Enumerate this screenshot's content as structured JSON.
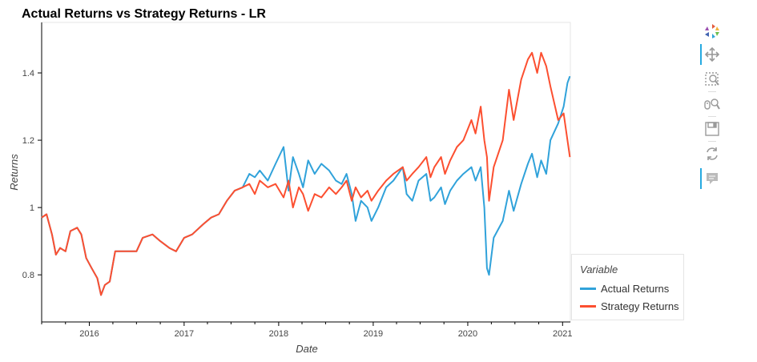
{
  "chart_data": {
    "type": "line",
    "title": "Actual Returns vs Strategy Returns - LR",
    "xlabel": "Date",
    "ylabel": "Returns",
    "xlim": [
      "2015-07-01",
      "2021-01-31"
    ],
    "ylim": [
      0.66,
      1.55
    ],
    "x_ticks": [
      "2016",
      "2017",
      "2018",
      "2019",
      "2020",
      "2021"
    ],
    "y_ticks": [
      0.8,
      1,
      1.2,
      1.4
    ],
    "y_tick_labels": [
      "0.8",
      "1",
      "1.2",
      "1.4"
    ],
    "grid": false,
    "legend": {
      "title": "Variable",
      "position": "bottom-right"
    },
    "series": [
      {
        "name": "Actual Returns",
        "color": "#30a2da",
        "points": [
          [
            "2015-07-01",
            0.97
          ],
          [
            "2015-07-20",
            0.98
          ],
          [
            "2015-08-10",
            0.92
          ],
          [
            "2015-08-25",
            0.86
          ],
          [
            "2015-09-10",
            0.88
          ],
          [
            "2015-10-01",
            0.87
          ],
          [
            "2015-10-20",
            0.93
          ],
          [
            "2015-11-15",
            0.94
          ],
          [
            "2015-12-01",
            0.92
          ],
          [
            "2015-12-20",
            0.85
          ],
          [
            "2016-01-10",
            0.82
          ],
          [
            "2016-02-01",
            0.79
          ],
          [
            "2016-02-15",
            0.74
          ],
          [
            "2016-03-01",
            0.77
          ],
          [
            "2016-03-20",
            0.78
          ],
          [
            "2016-04-10",
            0.87
          ],
          [
            "2016-07-01",
            0.87
          ],
          [
            "2016-07-25",
            0.91
          ],
          [
            "2016-09-01",
            0.92
          ],
          [
            "2016-10-01",
            0.9
          ],
          [
            "2016-11-05",
            0.88
          ],
          [
            "2016-12-01",
            0.87
          ],
          [
            "2017-01-01",
            0.91
          ],
          [
            "2017-02-01",
            0.92
          ],
          [
            "2017-03-15",
            0.95
          ],
          [
            "2017-04-15",
            0.97
          ],
          [
            "2017-05-15",
            0.98
          ],
          [
            "2017-06-15",
            1.02
          ],
          [
            "2017-07-15",
            1.05
          ],
          [
            "2017-08-15",
            1.06
          ],
          [
            "2017-09-10",
            1.1
          ],
          [
            "2017-10-01",
            1.09
          ],
          [
            "2017-10-20",
            1.11
          ],
          [
            "2017-11-20",
            1.08
          ],
          [
            "2017-12-20",
            1.13
          ],
          [
            "2018-01-20",
            1.18
          ],
          [
            "2018-02-08",
            1.05
          ],
          [
            "2018-02-25",
            1.15
          ],
          [
            "2018-03-20",
            1.1
          ],
          [
            "2018-04-05",
            1.06
          ],
          [
            "2018-04-25",
            1.14
          ],
          [
            "2018-05-20",
            1.1
          ],
          [
            "2018-06-15",
            1.13
          ],
          [
            "2018-07-15",
            1.11
          ],
          [
            "2018-08-10",
            1.08
          ],
          [
            "2018-09-01",
            1.07
          ],
          [
            "2018-09-20",
            1.1
          ],
          [
            "2018-10-10",
            1.04
          ],
          [
            "2018-10-25",
            0.96
          ],
          [
            "2018-11-15",
            1.02
          ],
          [
            "2018-12-10",
            1.0
          ],
          [
            "2018-12-25",
            0.96
          ],
          [
            "2019-01-20",
            1.0
          ],
          [
            "2019-02-20",
            1.06
          ],
          [
            "2019-03-20",
            1.08
          ],
          [
            "2019-04-25",
            1.12
          ],
          [
            "2019-05-10",
            1.04
          ],
          [
            "2019-06-01",
            1.02
          ],
          [
            "2019-06-25",
            1.08
          ],
          [
            "2019-07-25",
            1.1
          ],
          [
            "2019-08-10",
            1.02
          ],
          [
            "2019-08-25",
            1.03
          ],
          [
            "2019-09-20",
            1.06
          ],
          [
            "2019-10-05",
            1.01
          ],
          [
            "2019-10-25",
            1.05
          ],
          [
            "2019-11-20",
            1.08
          ],
          [
            "2019-12-15",
            1.1
          ],
          [
            "2020-01-15",
            1.12
          ],
          [
            "2020-01-31",
            1.08
          ],
          [
            "2020-02-20",
            1.12
          ],
          [
            "2020-03-05",
            1.0
          ],
          [
            "2020-03-15",
            0.82
          ],
          [
            "2020-03-23",
            0.8
          ],
          [
            "2020-04-10",
            0.91
          ],
          [
            "2020-05-15",
            0.96
          ],
          [
            "2020-06-08",
            1.05
          ],
          [
            "2020-06-26",
            0.99
          ],
          [
            "2020-07-25",
            1.07
          ],
          [
            "2020-08-20",
            1.13
          ],
          [
            "2020-09-05",
            1.16
          ],
          [
            "2020-09-25",
            1.09
          ],
          [
            "2020-10-10",
            1.14
          ],
          [
            "2020-10-30",
            1.1
          ],
          [
            "2020-11-15",
            1.2
          ],
          [
            "2020-12-15",
            1.25
          ],
          [
            "2021-01-05",
            1.3
          ],
          [
            "2021-01-20",
            1.37
          ],
          [
            "2021-01-29",
            1.39
          ]
        ]
      },
      {
        "name": "Strategy Returns",
        "color": "#fc4f30",
        "points": [
          [
            "2015-07-01",
            0.97
          ],
          [
            "2015-07-20",
            0.98
          ],
          [
            "2015-08-10",
            0.92
          ],
          [
            "2015-08-25",
            0.86
          ],
          [
            "2015-09-10",
            0.88
          ],
          [
            "2015-10-01",
            0.87
          ],
          [
            "2015-10-20",
            0.93
          ],
          [
            "2015-11-15",
            0.94
          ],
          [
            "2015-12-01",
            0.92
          ],
          [
            "2015-12-20",
            0.85
          ],
          [
            "2016-01-10",
            0.82
          ],
          [
            "2016-02-01",
            0.79
          ],
          [
            "2016-02-15",
            0.74
          ],
          [
            "2016-03-01",
            0.77
          ],
          [
            "2016-03-20",
            0.78
          ],
          [
            "2016-04-10",
            0.87
          ],
          [
            "2016-07-01",
            0.87
          ],
          [
            "2016-07-25",
            0.91
          ],
          [
            "2016-09-01",
            0.92
          ],
          [
            "2016-10-01",
            0.9
          ],
          [
            "2016-11-05",
            0.88
          ],
          [
            "2016-12-01",
            0.87
          ],
          [
            "2017-01-01",
            0.91
          ],
          [
            "2017-02-01",
            0.92
          ],
          [
            "2017-03-15",
            0.95
          ],
          [
            "2017-04-15",
            0.97
          ],
          [
            "2017-05-15",
            0.98
          ],
          [
            "2017-06-15",
            1.02
          ],
          [
            "2017-07-15",
            1.05
          ],
          [
            "2017-08-15",
            1.06
          ],
          [
            "2017-09-10",
            1.07
          ],
          [
            "2017-10-01",
            1.04
          ],
          [
            "2017-10-20",
            1.08
          ],
          [
            "2017-11-20",
            1.06
          ],
          [
            "2017-12-20",
            1.07
          ],
          [
            "2018-01-20",
            1.03
          ],
          [
            "2018-02-08",
            1.08
          ],
          [
            "2018-02-25",
            1.0
          ],
          [
            "2018-03-20",
            1.06
          ],
          [
            "2018-04-05",
            1.04
          ],
          [
            "2018-04-25",
            0.99
          ],
          [
            "2018-05-20",
            1.04
          ],
          [
            "2018-06-15",
            1.03
          ],
          [
            "2018-07-15",
            1.06
          ],
          [
            "2018-08-10",
            1.04
          ],
          [
            "2018-09-01",
            1.06
          ],
          [
            "2018-09-20",
            1.08
          ],
          [
            "2018-10-10",
            1.02
          ],
          [
            "2018-10-25",
            1.06
          ],
          [
            "2018-11-15",
            1.03
          ],
          [
            "2018-12-10",
            1.05
          ],
          [
            "2018-12-25",
            1.02
          ],
          [
            "2019-01-20",
            1.05
          ],
          [
            "2019-02-20",
            1.08
          ],
          [
            "2019-03-20",
            1.1
          ],
          [
            "2019-04-25",
            1.12
          ],
          [
            "2019-05-10",
            1.08
          ],
          [
            "2019-06-01",
            1.1
          ],
          [
            "2019-06-25",
            1.12
          ],
          [
            "2019-07-25",
            1.15
          ],
          [
            "2019-08-10",
            1.09
          ],
          [
            "2019-08-25",
            1.12
          ],
          [
            "2019-09-20",
            1.15
          ],
          [
            "2019-10-05",
            1.1
          ],
          [
            "2019-10-25",
            1.14
          ],
          [
            "2019-11-20",
            1.18
          ],
          [
            "2019-12-15",
            1.2
          ],
          [
            "2020-01-15",
            1.26
          ],
          [
            "2020-01-31",
            1.22
          ],
          [
            "2020-02-20",
            1.3
          ],
          [
            "2020-03-05",
            1.2
          ],
          [
            "2020-03-15",
            1.15
          ],
          [
            "2020-03-23",
            1.02
          ],
          [
            "2020-04-10",
            1.12
          ],
          [
            "2020-05-15",
            1.2
          ],
          [
            "2020-06-08",
            1.35
          ],
          [
            "2020-06-26",
            1.26
          ],
          [
            "2020-07-25",
            1.38
          ],
          [
            "2020-08-20",
            1.44
          ],
          [
            "2020-09-05",
            1.46
          ],
          [
            "2020-09-25",
            1.4
          ],
          [
            "2020-10-10",
            1.46
          ],
          [
            "2020-10-30",
            1.42
          ],
          [
            "2020-11-15",
            1.36
          ],
          [
            "2020-12-15",
            1.26
          ],
          [
            "2021-01-05",
            1.28
          ],
          [
            "2021-01-20",
            1.2
          ],
          [
            "2021-01-29",
            1.15
          ]
        ]
      }
    ]
  },
  "toolbar": {
    "tools": [
      {
        "icon": "pan-icon",
        "active": true
      },
      {
        "icon": "box-zoom-icon",
        "active": false
      },
      {
        "icon": "wheel-zoom-icon",
        "active": false
      },
      {
        "icon": "save-icon",
        "active": false
      },
      {
        "icon": "reset-icon",
        "active": false
      },
      {
        "icon": "hover-icon",
        "active": true
      }
    ]
  }
}
